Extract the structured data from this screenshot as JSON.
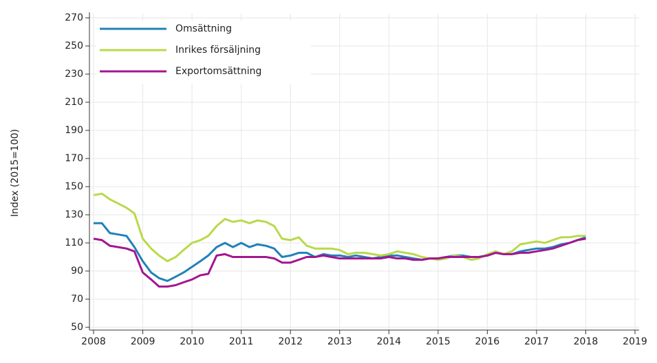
{
  "chart_data": {
    "type": "line",
    "y_label": "Index (2015=100)",
    "x": [
      2008,
      2008.17,
      2008.33,
      2008.5,
      2008.67,
      2008.83,
      2009,
      2009.17,
      2009.33,
      2009.5,
      2009.67,
      2009.83,
      2010,
      2010.17,
      2010.33,
      2010.5,
      2010.67,
      2010.83,
      2011,
      2011.17,
      2011.33,
      2011.5,
      2011.67,
      2011.83,
      2012,
      2012.17,
      2012.33,
      2012.5,
      2012.67,
      2012.83,
      2013,
      2013.17,
      2013.33,
      2013.5,
      2013.67,
      2013.83,
      2014,
      2014.17,
      2014.33,
      2014.5,
      2014.67,
      2014.83,
      2015,
      2015.17,
      2015.33,
      2015.5,
      2015.67,
      2015.83,
      2016,
      2016.17,
      2016.33,
      2016.5,
      2016.67,
      2016.83,
      2017,
      2017.17,
      2017.33,
      2017.5,
      2017.67,
      2017.83,
      2018
    ],
    "series": [
      {
        "name": "Omsättning",
        "color": "#1f82b8",
        "values": [
          124,
          124,
          117,
          116,
          115,
          107,
          97,
          89,
          85,
          83,
          86,
          89,
          93,
          97,
          101,
          107,
          110,
          107,
          110,
          107,
          109,
          108,
          106,
          100,
          101,
          103,
          103,
          100,
          102,
          101,
          101,
          100,
          101,
          100,
          99,
          100,
          101,
          101,
          100,
          99,
          98,
          99,
          99,
          100,
          101,
          101,
          100,
          100,
          101,
          103,
          102,
          102,
          104,
          105,
          106,
          106,
          107,
          109,
          110,
          112,
          114
        ]
      },
      {
        "name": "Inrikes försäljning",
        "color": "#b9d94a",
        "values": [
          144,
          145,
          141,
          138,
          135,
          131,
          113,
          106,
          101,
          97,
          100,
          105,
          110,
          112,
          115,
          122,
          127,
          125,
          126,
          124,
          126,
          125,
          122,
          113,
          112,
          114,
          108,
          106,
          106,
          106,
          105,
          102,
          103,
          103,
          102,
          101,
          102,
          104,
          103,
          102,
          100,
          99,
          98,
          99,
          101,
          100,
          98,
          99,
          102,
          104,
          102,
          104,
          109,
          110,
          111,
          110,
          112,
          114,
          114,
          115,
          115
        ]
      },
      {
        "name": "Exportomsättning",
        "color": "#a3158f",
        "values": [
          113,
          112,
          108,
          107,
          106,
          104,
          89,
          84,
          79,
          79,
          80,
          82,
          84,
          87,
          88,
          101,
          102,
          100,
          100,
          100,
          100,
          100,
          99,
          96,
          96,
          98,
          100,
          100,
          101,
          100,
          99,
          99,
          99,
          99,
          99,
          99,
          100,
          99,
          99,
          98,
          98,
          99,
          99,
          100,
          100,
          100,
          100,
          100,
          101,
          103,
          102,
          102,
          103,
          103,
          104,
          105,
          106,
          108,
          110,
          112,
          113
        ]
      }
    ],
    "xlim": [
      2008,
      2019
    ],
    "xticks": [
      2008,
      2009,
      2010,
      2011,
      2012,
      2013,
      2014,
      2015,
      2016,
      2017,
      2018,
      2019
    ],
    "ylim": [
      50,
      270
    ],
    "yticks": [
      50,
      70,
      90,
      110,
      130,
      150,
      170,
      190,
      210,
      230,
      250,
      270
    ],
    "grid": true,
    "legend": "top-left"
  }
}
